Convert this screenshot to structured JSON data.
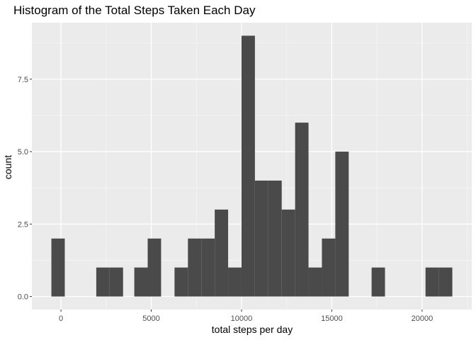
{
  "chart_data": {
    "type": "bar",
    "title": "Histogram of the Total Steps Taken Each Day",
    "xlabel": "total steps per day",
    "ylabel": "count",
    "bins": [
      {
        "x_start": -530,
        "x_end": 212,
        "count": 2
      },
      {
        "x_start": 1956,
        "x_end": 2698,
        "count": 1
      },
      {
        "x_start": 2698,
        "x_end": 3440,
        "count": 1
      },
      {
        "x_start": 4062,
        "x_end": 4804,
        "count": 1
      },
      {
        "x_start": 4804,
        "x_end": 5546,
        "count": 2
      },
      {
        "x_start": 6290,
        "x_end": 7032,
        "count": 1
      },
      {
        "x_start": 7032,
        "x_end": 7774,
        "count": 2
      },
      {
        "x_start": 7774,
        "x_end": 8516,
        "count": 2
      },
      {
        "x_start": 8516,
        "x_end": 9258,
        "count": 3
      },
      {
        "x_start": 9258,
        "x_end": 10000,
        "count": 1
      },
      {
        "x_start": 10000,
        "x_end": 10742,
        "count": 9
      },
      {
        "x_start": 10742,
        "x_end": 11484,
        "count": 4
      },
      {
        "x_start": 11484,
        "x_end": 12226,
        "count": 4
      },
      {
        "x_start": 12226,
        "x_end": 12968,
        "count": 3
      },
      {
        "x_start": 12968,
        "x_end": 13710,
        "count": 6
      },
      {
        "x_start": 13710,
        "x_end": 14452,
        "count": 1
      },
      {
        "x_start": 14452,
        "x_end": 15194,
        "count": 2
      },
      {
        "x_start": 15194,
        "x_end": 15936,
        "count": 5
      },
      {
        "x_start": 17204,
        "x_end": 17946,
        "count": 1
      },
      {
        "x_start": 20190,
        "x_end": 20932,
        "count": 1
      },
      {
        "x_start": 20932,
        "x_end": 21674,
        "count": 1
      }
    ],
    "xlim": [
      -1610,
      22750
    ],
    "ylim": [
      -0.45,
      9.45
    ],
    "x_ticks": [
      0,
      5000,
      10000,
      15000,
      20000
    ],
    "x_tick_labels": [
      "0",
      "5000",
      "10000",
      "15000",
      "20000"
    ],
    "y_ticks": [
      0,
      2.5,
      5,
      7.5
    ],
    "y_tick_labels": [
      "0.0",
      "2.5",
      "5.0",
      "7.5"
    ],
    "grid": true,
    "legend": "none",
    "colors": {
      "bar": "#4a4a4a",
      "panel": "#ebebeb",
      "grid_major": "#ffffff",
      "grid_minor": "#f5f5f5",
      "tick_label": "#4d4d4d",
      "tick_mark": "#333333"
    }
  }
}
